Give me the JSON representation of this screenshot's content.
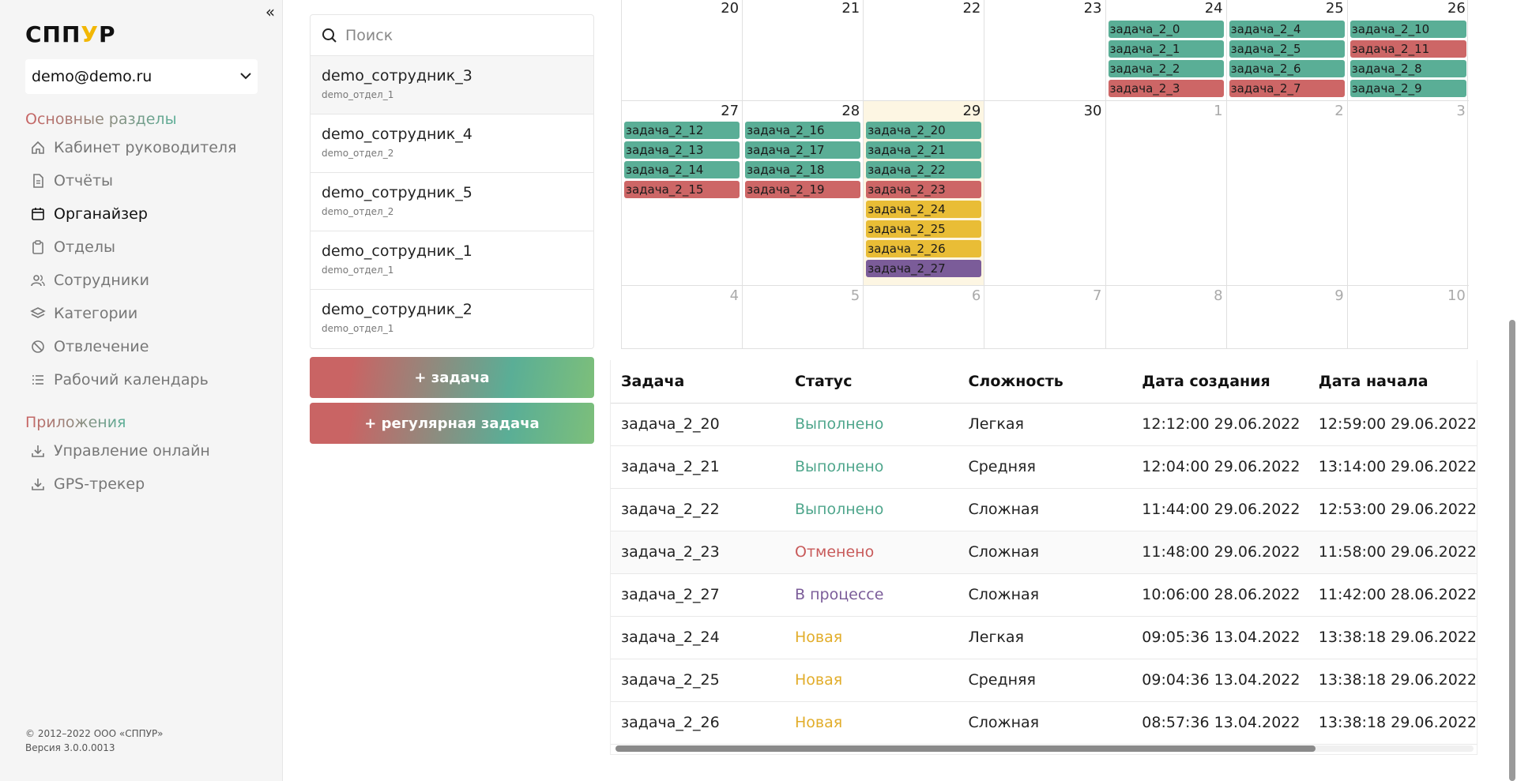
{
  "colors": {
    "green": "#5aae96",
    "red": "#cd6666",
    "yellow": "#e9bd36",
    "purple": "#7b5c99",
    "accent": "#f2b705"
  },
  "sidebar": {
    "logo_left": "СПП",
    "logo_accent": "У",
    "logo_right": "Р",
    "account": "demo@demo.ru",
    "main_title": "Основные разделы",
    "items": [
      {
        "label": "Кабинет руководителя",
        "icon": "home-icon"
      },
      {
        "label": "Отчёты",
        "icon": "document-icon"
      },
      {
        "label": "Органайзер",
        "icon": "calendar-icon",
        "active": true
      },
      {
        "label": "Отделы",
        "icon": "clipboard-icon"
      },
      {
        "label": "Сотрудники",
        "icon": "users-icon"
      },
      {
        "label": "Категории",
        "icon": "layers-icon"
      },
      {
        "label": "Отвлечение",
        "icon": "ban-icon"
      },
      {
        "label": "Рабочий календарь",
        "icon": "list-icon"
      }
    ],
    "apps_title": "Приложения",
    "apps": [
      {
        "label": "Управление онлайн",
        "icon": "download-icon"
      },
      {
        "label": "GPS-трекер",
        "icon": "download-icon"
      }
    ],
    "copyright": "© 2012–2022 ООО «СППУР»",
    "version": "Версия 3.0.0.0013"
  },
  "employees": {
    "search_placeholder": "Поиск",
    "list": [
      {
        "name": "demo_сотрудник_3",
        "dept": "demo_отдел_1",
        "selected": true
      },
      {
        "name": "demo_сотрудник_4",
        "dept": "demo_отдел_2"
      },
      {
        "name": "demo_сотрудник_5",
        "dept": "demo_отдел_2"
      },
      {
        "name": "demo_сотрудник_1",
        "dept": "demo_отдел_1"
      },
      {
        "name": "demo_сотрудник_2",
        "dept": "demo_отдел_1"
      }
    ],
    "add_task": "+ задача",
    "add_regular_task": "+ регулярная задача"
  },
  "calendar": {
    "weeks": [
      [
        {
          "num": "20",
          "events": []
        },
        {
          "num": "21",
          "events": []
        },
        {
          "num": "22",
          "events": []
        },
        {
          "num": "23",
          "events": []
        },
        {
          "num": "24",
          "events": [
            [
              "задача_2_0",
              "green"
            ],
            [
              "задача_2_1",
              "green"
            ],
            [
              "задача_2_2",
              "green"
            ],
            [
              "задача_2_3",
              "red"
            ]
          ]
        },
        {
          "num": "25",
          "events": [
            [
              "задача_2_4",
              "green"
            ],
            [
              "задача_2_5",
              "green"
            ],
            [
              "задача_2_6",
              "green"
            ],
            [
              "задача_2_7",
              "red"
            ]
          ]
        },
        {
          "num": "26",
          "events": [
            [
              "задача_2_10",
              "green"
            ],
            [
              "задача_2_11",
              "red"
            ],
            [
              "задача_2_8",
              "green"
            ],
            [
              "задача_2_9",
              "green"
            ]
          ]
        }
      ],
      [
        {
          "num": "27",
          "events": [
            [
              "задача_2_12",
              "green"
            ],
            [
              "задача_2_13",
              "green"
            ],
            [
              "задача_2_14",
              "green"
            ],
            [
              "задача_2_15",
              "red"
            ]
          ]
        },
        {
          "num": "28",
          "events": [
            [
              "задача_2_16",
              "green"
            ],
            [
              "задача_2_17",
              "green"
            ],
            [
              "задача_2_18",
              "green"
            ],
            [
              "задача_2_19",
              "red"
            ]
          ]
        },
        {
          "num": "29",
          "today": true,
          "events": [
            [
              "задача_2_20",
              "green"
            ],
            [
              "задача_2_21",
              "green"
            ],
            [
              "задача_2_22",
              "green"
            ],
            [
              "задача_2_23",
              "red"
            ],
            [
              "задача_2_24",
              "yellow"
            ],
            [
              "задача_2_25",
              "yellow"
            ],
            [
              "задача_2_26",
              "yellow"
            ],
            [
              "задача_2_27",
              "purple"
            ]
          ]
        },
        {
          "num": "30",
          "events": []
        },
        {
          "num": "1",
          "muted": true,
          "events": []
        },
        {
          "num": "2",
          "muted": true,
          "events": []
        },
        {
          "num": "3",
          "muted": true,
          "events": []
        }
      ],
      [
        {
          "num": "4",
          "muted": true,
          "events": []
        },
        {
          "num": "5",
          "muted": true,
          "events": []
        },
        {
          "num": "6",
          "muted": true,
          "events": []
        },
        {
          "num": "7",
          "muted": true,
          "events": []
        },
        {
          "num": "8",
          "muted": true,
          "events": []
        },
        {
          "num": "9",
          "muted": true,
          "events": []
        },
        {
          "num": "10",
          "muted": true,
          "events": []
        }
      ]
    ]
  },
  "table": {
    "headers": [
      "Задача",
      "Статус",
      "Сложность",
      "Дата создания",
      "Дата начала"
    ],
    "rows": [
      [
        "задача_2_20",
        "Выполнено",
        "Легкая",
        "12:12:00 29.06.2022",
        "12:59:00 29.06.2022"
      ],
      [
        "задача_2_21",
        "Выполнено",
        "Средняя",
        "12:04:00 29.06.2022",
        "13:14:00 29.06.2022"
      ],
      [
        "задача_2_22",
        "Выполнено",
        "Сложная",
        "11:44:00 29.06.2022",
        "12:53:00 29.06.2022"
      ],
      [
        "задача_2_23",
        "Отменено",
        "Сложная",
        "11:48:00 29.06.2022",
        "11:58:00 29.06.2022"
      ],
      [
        "задача_2_27",
        "В процессе",
        "Сложная",
        "10:06:00 28.06.2022",
        "11:42:00 28.06.2022"
      ],
      [
        "задача_2_24",
        "Новая",
        "Легкая",
        "09:05:36 13.04.2022",
        "13:38:18 29.06.2022"
      ],
      [
        "задача_2_25",
        "Новая",
        "Средняя",
        "09:04:36 13.04.2022",
        "13:38:18 29.06.2022"
      ],
      [
        "задача_2_26",
        "Новая",
        "Сложная",
        "08:57:36 13.04.2022",
        "13:38:18 29.06.2022"
      ]
    ],
    "status_colors": {
      "Выполнено": "#4fa68c",
      "Отменено": "#c85a5a",
      "В процессе": "#7b5c99",
      "Новая": "#e2ad2a"
    }
  }
}
